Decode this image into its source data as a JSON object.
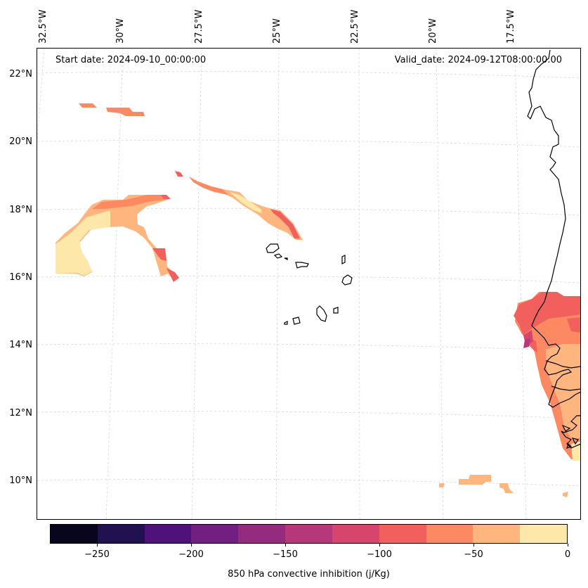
{
  "map": {
    "start_date": "Start date: 2024-09-10_00:00:00",
    "valid_date": "Valid_date: 2024-09-12T08:00:00.00",
    "lon_labels": [
      "32.5°W",
      "30°W",
      "27.5°W",
      "25°W",
      "22.5°W",
      "20°W",
      "17.5°W"
    ],
    "lat_labels": [
      "22°N",
      "20°N",
      "18°N",
      "16°N",
      "14°N",
      "12°N",
      "10°N"
    ],
    "colorbar": {
      "title": "850 hPa convective inhibition (j/Kg)",
      "range": [
        -275,
        0
      ],
      "tick_values": [
        -250,
        -200,
        -150,
        -100,
        -50,
        0
      ],
      "tick_labels": [
        "−250",
        "−200",
        "−150",
        "−100",
        "−50",
        "0"
      ],
      "colors": [
        "#08061d",
        "#221150",
        "#4f127b",
        "#721f81",
        "#942b7f",
        "#b6377a",
        "#d8456c",
        "#f1605d",
        "#fc8961",
        "#feb57e",
        "#fde7a9"
      ]
    },
    "colors": {
      "coast": "#000000",
      "grid": "#cccccc"
    }
  }
}
